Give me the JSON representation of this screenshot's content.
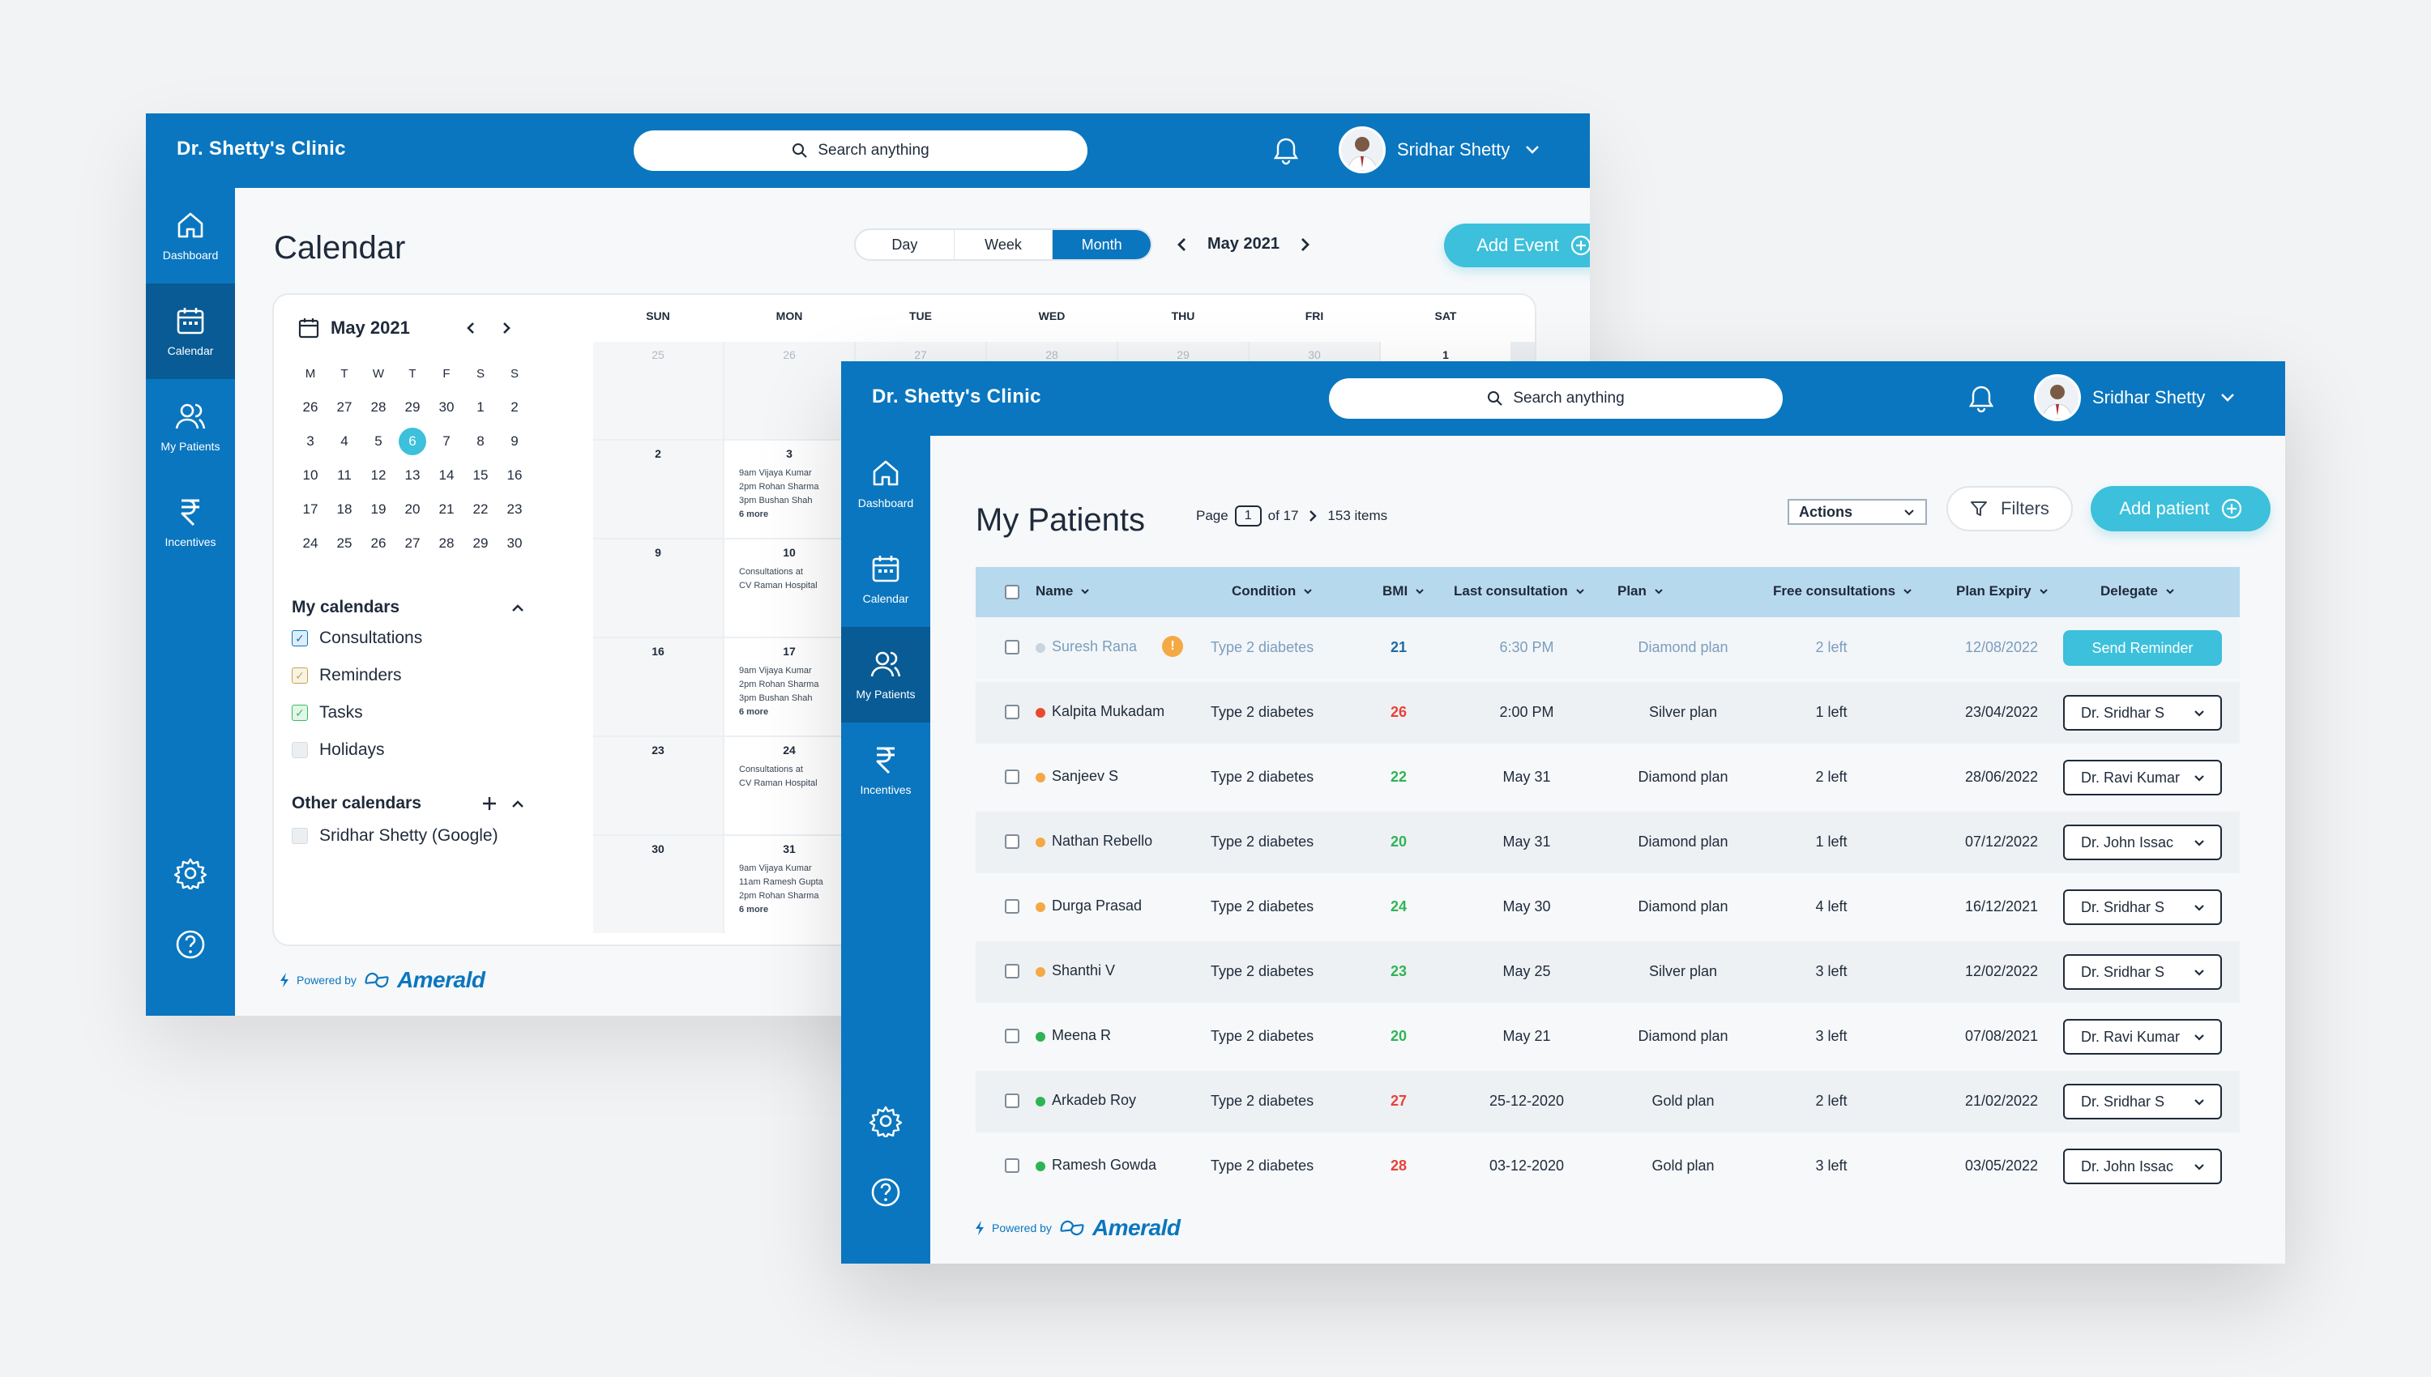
{
  "clinic_name": "Dr. Shetty's Clinic",
  "search_placeholder": "Search anything",
  "user_name": "Sridhar Shetty",
  "brand": {
    "powered_by": "Powered by",
    "logo_text": "Amerald"
  },
  "sidebar": {
    "dashboard": "Dashboard",
    "calendar": "Calendar",
    "patients": "My Patients",
    "incentives": "Incentives"
  },
  "colors": {
    "primary": "#0a76bf",
    "primary_dark": "#085b95",
    "accent": "#3cc0db",
    "header_row": "#b7d9ee"
  },
  "calendar": {
    "title": "Calendar",
    "views": [
      "Day",
      "Week",
      "Month"
    ],
    "active_view": "Month",
    "current_month": "May 2021",
    "add_button": "Add Event",
    "mini": {
      "month": "May 2021",
      "weekdays": [
        "M",
        "T",
        "W",
        "T",
        "F",
        "S",
        "S"
      ],
      "weeks": [
        [
          "26",
          "27",
          "28",
          "29",
          "30",
          "1",
          "2"
        ],
        [
          "3",
          "4",
          "5",
          "6",
          "7",
          "8",
          "9"
        ],
        [
          "10",
          "11",
          "12",
          "13",
          "14",
          "15",
          "16"
        ],
        [
          "17",
          "18",
          "19",
          "20",
          "21",
          "22",
          "23"
        ],
        [
          "24",
          "25",
          "26",
          "27",
          "28",
          "29",
          "30"
        ]
      ],
      "selected": "6"
    },
    "my_calendars_title": "My calendars",
    "my_calendars": [
      {
        "label": "Consultations",
        "checked": true,
        "color": "#0a76bf"
      },
      {
        "label": "Reminders",
        "checked": true,
        "color": "#c9a34e"
      },
      {
        "label": "Tasks",
        "checked": true,
        "color": "#2fbf57"
      },
      {
        "label": "Holidays",
        "checked": false,
        "color": "#b3bac2"
      }
    ],
    "other_calendars_title": "Other calendars",
    "other_calendars": [
      {
        "label": "Sridhar Shetty (Google)",
        "checked": false
      }
    ],
    "grid_weekdays": [
      "SUN",
      "MON",
      "TUE",
      "WED",
      "THU",
      "FRI",
      "SAT"
    ],
    "grid_rows": [
      [
        {
          "d": "25",
          "m": true
        },
        {
          "d": "26",
          "m": true
        },
        {
          "d": "27",
          "m": true
        },
        {
          "d": "28",
          "m": true
        },
        {
          "d": "29",
          "m": true
        },
        {
          "d": "30",
          "m": true
        },
        {
          "d": "1"
        }
      ],
      [
        {
          "d": "2"
        },
        {
          "d": "3",
          "ev": [
            "9am Vijaya Kumar",
            "2pm Rohan Sharma",
            "3pm Bushan Shah"
          ],
          "more": "6 more"
        },
        {
          "d": ""
        },
        {
          "d": ""
        },
        {
          "d": ""
        },
        {
          "d": ""
        },
        {
          "d": ""
        }
      ],
      [
        {
          "d": "9"
        },
        {
          "d": "10",
          "ev": [
            "Consultations at",
            "CV Raman Hospital"
          ]
        },
        {
          "d": ""
        },
        {
          "d": ""
        },
        {
          "d": ""
        },
        {
          "d": ""
        },
        {
          "d": ""
        }
      ],
      [
        {
          "d": "16"
        },
        {
          "d": "17",
          "ev": [
            "9am Vijaya Kumar",
            "2pm Rohan Sharma",
            "3pm Bushan Shah"
          ],
          "more": "6 more"
        },
        {
          "d": ""
        },
        {
          "d": ""
        },
        {
          "d": ""
        },
        {
          "d": ""
        },
        {
          "d": ""
        }
      ],
      [
        {
          "d": "23"
        },
        {
          "d": "24",
          "ev": [
            "Consultations at",
            "CV Raman Hospital"
          ]
        },
        {
          "d": ""
        },
        {
          "d": ""
        },
        {
          "d": ""
        },
        {
          "d": ""
        },
        {
          "d": ""
        }
      ],
      [
        {
          "d": "30"
        },
        {
          "d": "31",
          "ev": [
            "9am Vijaya Kumar",
            "11am Ramesh Gupta",
            "2pm Rohan Sharma"
          ],
          "more": "6 more"
        },
        {
          "d": ""
        },
        {
          "d": ""
        },
        {
          "d": ""
        },
        {
          "d": ""
        },
        {
          "d": ""
        }
      ]
    ]
  },
  "patients": {
    "title": "My Patients",
    "page_label": "Page",
    "page": "1",
    "of_pages": "of 17",
    "items_count": "153 items",
    "actions_label": "Actions",
    "filters_label": "Filters",
    "add_button": "Add patient",
    "columns": [
      "Name",
      "Condition",
      "BMI",
      "Last consultation",
      "Plan",
      "Free consultations",
      "Plan Expiry",
      "Delegate"
    ],
    "rows": [
      {
        "name": "Suresh Rana",
        "status": "#c8d4de",
        "warning": "!",
        "condition": "Type 2 diabetes",
        "bmi": "21",
        "bmi_color": "#1f6aa5",
        "last": "6:30 PM",
        "plan": "Diamond plan",
        "free": "2 left",
        "expiry": "12/08/2022",
        "delegate": "",
        "reminder": "Send Reminder",
        "hover": true
      },
      {
        "name": "Kalpita Mukadam",
        "status": "#e94a2e",
        "condition": "Type 2 diabetes",
        "bmi": "26",
        "bmi_color": "#e8413a",
        "last": "2:00 PM",
        "plan": "Silver plan",
        "free": "1 left",
        "expiry": "23/04/2022",
        "delegate": "Dr. Sridhar S"
      },
      {
        "name": "Sanjeev S",
        "status": "#f4a944",
        "condition": "Type 2 diabetes",
        "bmi": "22",
        "bmi_color": "#2fb454",
        "last": "May 31",
        "plan": "Diamond plan",
        "free": "2 left",
        "expiry": "28/06/2022",
        "delegate": "Dr. Ravi Kumar"
      },
      {
        "name": "Nathan Rebello",
        "status": "#f4a944",
        "condition": "Type 2 diabetes",
        "bmi": "20",
        "bmi_color": "#2fb454",
        "last": "May 31",
        "plan": "Diamond plan",
        "free": "1 left",
        "expiry": "07/12/2022",
        "delegate": "Dr. John Issac"
      },
      {
        "name": "Durga Prasad",
        "status": "#f4a944",
        "condition": "Type 2 diabetes",
        "bmi": "24",
        "bmi_color": "#2fb454",
        "last": "May 30",
        "plan": "Diamond plan",
        "free": "4 left",
        "expiry": "16/12/2021",
        "delegate": "Dr. Sridhar S"
      },
      {
        "name": "Shanthi V",
        "status": "#f4a944",
        "condition": "Type 2 diabetes",
        "bmi": "23",
        "bmi_color": "#2fb454",
        "last": "May 25",
        "plan": "Silver plan",
        "free": "3 left",
        "expiry": "12/02/2022",
        "delegate": "Dr. Sridhar S"
      },
      {
        "name": "Meena R",
        "status": "#2fb454",
        "condition": "Type 2 diabetes",
        "bmi": "20",
        "bmi_color": "#2fb454",
        "last": "May 21",
        "plan": "Diamond plan",
        "free": "3 left",
        "expiry": "07/08/2021",
        "delegate": "Dr. Ravi Kumar"
      },
      {
        "name": "Arkadeb Roy",
        "status": "#2fb454",
        "condition": "Type 2 diabetes",
        "bmi": "27",
        "bmi_color": "#e8413a",
        "last": "25-12-2020",
        "plan": "Gold plan",
        "free": "2 left",
        "expiry": "21/02/2022",
        "delegate": "Dr. Sridhar S"
      },
      {
        "name": "Ramesh Gowda",
        "status": "#2fb454",
        "condition": "Type 2 diabetes",
        "bmi": "28",
        "bmi_color": "#e8413a",
        "last": "03-12-2020",
        "plan": "Gold plan",
        "free": "3 left",
        "expiry": "03/05/2022",
        "delegate": "Dr. John Issac"
      }
    ]
  }
}
